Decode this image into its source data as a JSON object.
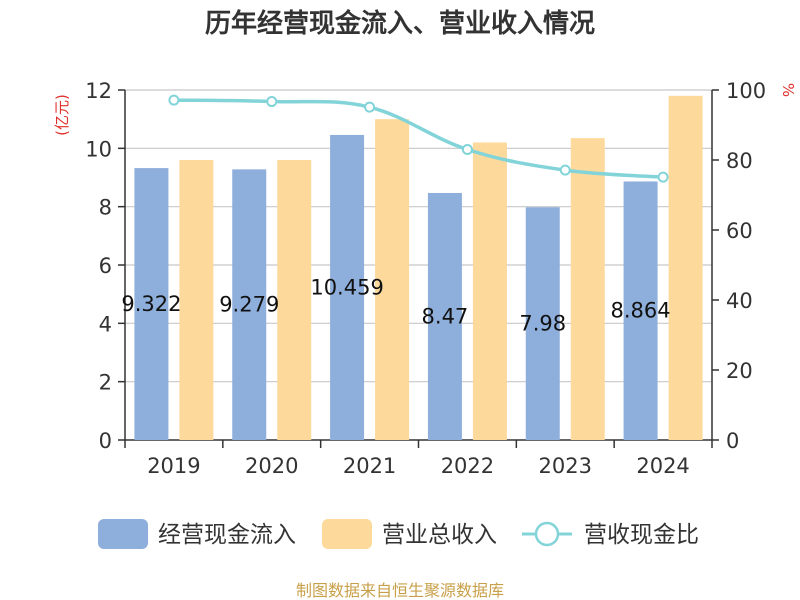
{
  "chart_data": {
    "type": "bar",
    "title": "历年经营现金流入、营业收入情况",
    "categories": [
      "2019",
      "2020",
      "2021",
      "2022",
      "2023",
      "2024"
    ],
    "y_left": {
      "unit": "(亿元)",
      "range": [
        0,
        12
      ],
      "ticks": [
        "0",
        "2",
        "4",
        "6",
        "8",
        "10",
        "12"
      ]
    },
    "y_right": {
      "unit": "%",
      "range": [
        0,
        100
      ],
      "ticks": [
        "0",
        "20",
        "40",
        "60",
        "80",
        "100"
      ]
    },
    "series": [
      {
        "name": "经营现金流入",
        "type": "bar",
        "axis": "left",
        "color": "#8eaedb",
        "values": [
          9.322,
          9.279,
          10.459,
          8.47,
          7.98,
          8.864
        ],
        "labels": [
          "9.322",
          "9.279",
          "10.459",
          "8.47",
          "7.98",
          "8.864"
        ]
      },
      {
        "name": "营业总收入",
        "type": "bar",
        "axis": "left",
        "color": "#fdd99b",
        "values": [
          9.6,
          9.6,
          11.0,
          10.2,
          10.35,
          11.8
        ]
      },
      {
        "name": "营收现金比",
        "type": "line",
        "axis": "right",
        "color": "#82d4d9",
        "values": [
          97.1,
          96.7,
          95.1,
          83.0,
          77.1,
          75.1
        ]
      }
    ],
    "grid": true,
    "legend_position": "bottom"
  },
  "source_note": "制图数据来自恒生聚源数据库"
}
